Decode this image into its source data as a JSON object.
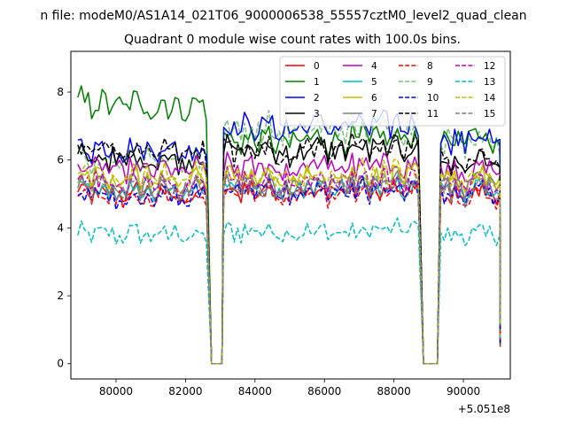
{
  "figure": {
    "suptitle": "n file: modeM0/AS1A14_021T06_9000006538_55557cztM0_level2_quad_clean",
    "offset_text": "+5.051e8"
  },
  "chart_data": {
    "type": "line",
    "title": "Quadrant 0 module wise count rates with 100.0s bins.",
    "xlabel": "",
    "ylabel": "",
    "x_offset": 505100000,
    "xlim": [
      78700,
      91350
    ],
    "ylim": [
      -0.45,
      9.2
    ],
    "x_ticks": [
      80000,
      82000,
      84000,
      86000,
      88000,
      90000
    ],
    "x_tick_labels": [
      "80000",
      "82000",
      "84000",
      "86000",
      "88000",
      "90000"
    ],
    "y_ticks": [
      0,
      2,
      4,
      6,
      8
    ],
    "y_tick_labels": [
      "0",
      "2",
      "4",
      "6",
      "8"
    ],
    "grid": false,
    "legend": {
      "placement": "top-right",
      "columns": 4
    },
    "segments": [
      {
        "start": 78900,
        "end": 82650,
        "bin": 100
      },
      {
        "start": 83100,
        "end": 88750,
        "bin": 100
      },
      {
        "start": 89350,
        "end": 91050,
        "bin": 100
      }
    ],
    "gaps": [
      {
        "start": 82750,
        "end": 83050
      },
      {
        "start": 88850,
        "end": 89250
      }
    ],
    "series": [
      {
        "name": "0",
        "color": "#ff0000",
        "dash": "solid",
        "alpha": 1,
        "levels": [
          5.0,
          5.1,
          5.0
        ]
      },
      {
        "name": "1",
        "color": "#008000",
        "dash": "solid",
        "alpha": 1,
        "levels": [
          7.6,
          6.6,
          6.6
        ]
      },
      {
        "name": "2",
        "color": "#0000ff",
        "dash": "solid",
        "alpha": 1,
        "levels": [
          6.3,
          7.0,
          6.6
        ]
      },
      {
        "name": "3",
        "color": "#000000",
        "dash": "solid",
        "alpha": 1,
        "levels": [
          6.0,
          6.3,
          5.9
        ]
      },
      {
        "name": "4",
        "color": "#bf00bf",
        "dash": "solid",
        "alpha": 1,
        "levels": [
          5.7,
          5.8,
          5.6
        ]
      },
      {
        "name": "5",
        "color": "#00bfbf",
        "dash": "solid",
        "alpha": 1,
        "levels": [
          5.1,
          5.2,
          5.1
        ]
      },
      {
        "name": "6",
        "color": "#bfbf00",
        "dash": "solid",
        "alpha": 1,
        "levels": [
          5.4,
          5.5,
          5.4
        ]
      },
      {
        "name": "7",
        "color": "#808080",
        "dash": "solid",
        "alpha": 1,
        "levels": [
          5.2,
          5.3,
          5.3
        ]
      },
      {
        "name": "8",
        "color": "#ff0000",
        "dash": "dashed",
        "alpha": 1,
        "levels": [
          4.9,
          5.0,
          4.9
        ]
      },
      {
        "name": "9",
        "color": "#008000",
        "dash": "dashed",
        "alpha": 0.5,
        "levels": [
          6.0,
          6.9,
          6.6
        ]
      },
      {
        "name": "10",
        "color": "#0000ff",
        "dash": "dashed",
        "alpha": 1,
        "levels": [
          4.9,
          5.1,
          5.0
        ]
      },
      {
        "name": "11",
        "color": "#000000",
        "dash": "dashed",
        "alpha": 1,
        "levels": [
          6.2,
          6.3,
          6.0
        ]
      },
      {
        "name": "12",
        "color": "#bf00bf",
        "dash": "dashed",
        "alpha": 1,
        "levels": [
          5.3,
          5.4,
          5.2
        ]
      },
      {
        "name": "13",
        "color": "#00bfbf",
        "dash": "dashed",
        "alpha": 1,
        "levels": [
          3.8,
          3.9,
          3.8
        ]
      },
      {
        "name": "14",
        "color": "#bfbf00",
        "dash": "dashed",
        "alpha": 1,
        "levels": [
          5.5,
          5.6,
          5.4
        ]
      },
      {
        "name": "15",
        "color": "#808080",
        "dash": "dashed",
        "alpha": 1,
        "levels": [
          5.1,
          5.2,
          5.1
        ]
      }
    ]
  }
}
